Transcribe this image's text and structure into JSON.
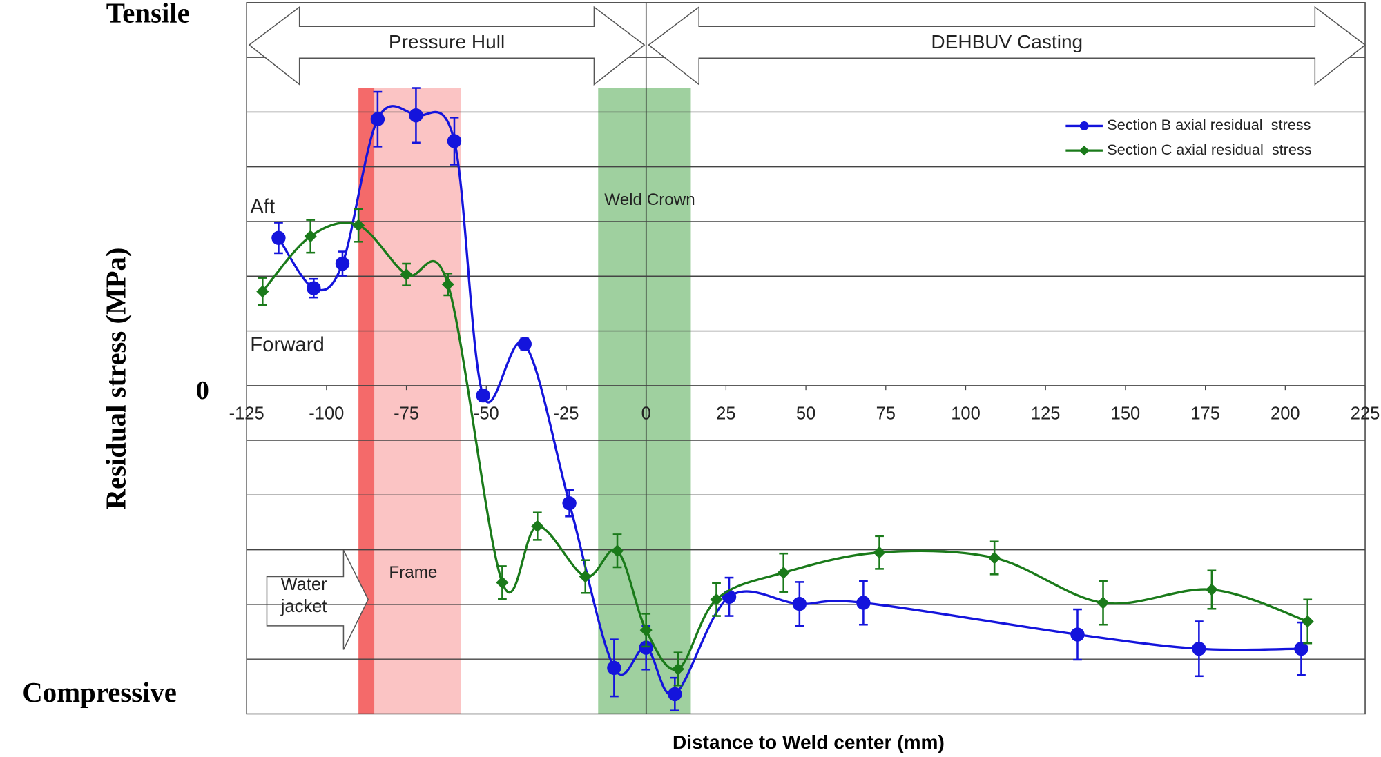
{
  "chart_data": {
    "type": "line",
    "y_label": "Residual stress (MPa)",
    "x_label": "Distance to Weld center (mm)",
    "y_end_labels": {
      "top": "Tensile",
      "bottom": "Compressive"
    },
    "xlim": [
      -125,
      225
    ],
    "xticks": [
      -125,
      -100,
      -75,
      -50,
      -25,
      0,
      25,
      50,
      75,
      100,
      125,
      150,
      175,
      200,
      225
    ],
    "ylim": [
      -6,
      7
    ],
    "yticks": [
      0
    ],
    "ygrid_lines": [
      -5,
      -4,
      -3,
      -2,
      -1,
      0,
      1,
      2,
      3,
      4,
      5,
      6
    ],
    "legend": "upper right",
    "spans": [
      {
        "label": "Pressure Hull",
        "x": [
          -125,
          0
        ]
      },
      {
        "label": "DEHBUV Casting",
        "x": [
          0,
          225
        ]
      }
    ],
    "regions": [
      {
        "x": [
          -90,
          -85
        ],
        "color": "#f46a6a"
      },
      {
        "label": "Frame",
        "x": [
          -85,
          -58
        ],
        "color": "#fbc4c4"
      },
      {
        "label": "Weld Crown",
        "x": [
          -15,
          14
        ],
        "color": "#9fd09f"
      }
    ],
    "series_labels": {
      "aft": "Aft",
      "forward": "Forward"
    },
    "water_jacket": [
      "Water",
      "jacket"
    ],
    "series": [
      {
        "name": "Section B axial residual  stress",
        "color": "#1414dc",
        "x": [
          -115,
          -104,
          -95,
          -84,
          -72,
          -60,
          -51,
          -38,
          -24,
          -10,
          0,
          9,
          26,
          48,
          68,
          135,
          173,
          205
        ],
        "values": [
          2.7,
          1.78,
          2.23,
          4.87,
          4.94,
          4.47,
          -0.18,
          0.76,
          -2.15,
          -5.16,
          -4.79,
          -5.64,
          -3.86,
          -3.99,
          -3.97,
          -4.55,
          -4.81,
          -4.81
        ],
        "errors": [
          0.28,
          0.17,
          0.22,
          0.5,
          0.5,
          0.43,
          0.1,
          0.1,
          0.24,
          0.52,
          0.4,
          0.3,
          0.35,
          0.4,
          0.4,
          0.46,
          0.5,
          0.48
        ]
      },
      {
        "name": "Section C axial residual  stress",
        "color": "#1a7a1a",
        "x": [
          -120,
          -105,
          -90,
          -75,
          -62,
          -45,
          -34,
          -19,
          -9,
          0,
          10,
          22,
          43,
          73,
          109,
          143,
          177,
          207
        ],
        "values": [
          1.72,
          2.73,
          2.93,
          2.03,
          1.85,
          -3.6,
          -2.57,
          -3.49,
          -3.02,
          -4.47,
          -5.18,
          -3.91,
          -3.42,
          -3.05,
          -3.15,
          -3.97,
          -3.73,
          -4.31
        ],
        "errors": [
          0.25,
          0.3,
          0.3,
          0.2,
          0.2,
          0.3,
          0.25,
          0.3,
          0.3,
          0.3,
          0.3,
          0.3,
          0.35,
          0.3,
          0.3,
          0.4,
          0.35,
          0.4
        ]
      }
    ]
  }
}
